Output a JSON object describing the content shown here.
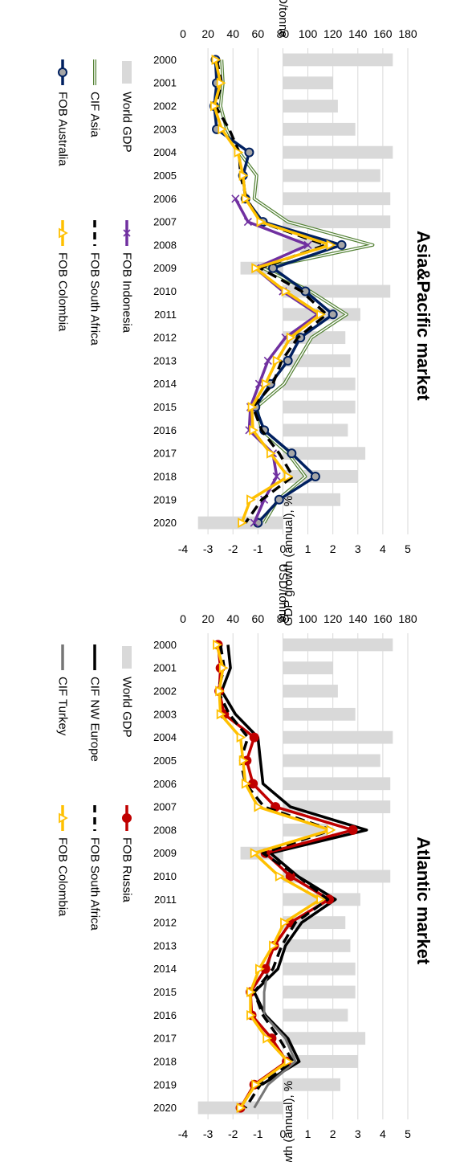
{
  "colors": {
    "gdp": "#d9d9d9",
    "cif_nw_europe": "#000000",
    "cif_turkey": "#767676",
    "fob_russia": "#c00000",
    "fob_south_africa": "#000000",
    "fob_colombia": "#ffc000",
    "fob_australia": "#002060",
    "fob_indonesia": "#7030a0",
    "cif_asia": "#548235",
    "gridline": "#d9d9d9"
  },
  "chart_data": [
    {
      "type": "line",
      "title": "Atlantic market",
      "ylabel": "USD/tonne",
      "y2label": "GDP growth (annual), %",
      "ylim": [
        0,
        180
      ],
      "y2lim": [
        -4,
        5
      ],
      "yticks": [
        "0",
        "20",
        "40",
        "60",
        "80",
        "100",
        "120",
        "140",
        "160",
        "180"
      ],
      "y2ticks": [
        "-4",
        "-3",
        "-2",
        "-1",
        "0",
        "1",
        "2",
        "3",
        "4",
        "5"
      ],
      "categories": [
        "2000",
        "2001",
        "2002",
        "2003",
        "2004",
        "2005",
        "2006",
        "2007",
        "2008",
        "2009",
        "2010",
        "2011",
        "2012",
        "2013",
        "2014",
        "2015",
        "2016",
        "2017",
        "2018",
        "2019",
        "2020"
      ],
      "legend_placement": "bottom",
      "bars": {
        "name": "World GDP",
        "values": [
          4.4,
          2.0,
          2.2,
          2.9,
          4.4,
          3.9,
          4.3,
          4.3,
          1.8,
          -1.7,
          4.3,
          3.1,
          2.5,
          2.7,
          2.9,
          2.9,
          2.6,
          3.3,
          3.0,
          2.3,
          -3.4
        ]
      },
      "series": [
        {
          "name": "CIF NW Europe",
          "style": "solid-thick",
          "values": [
            36,
            38,
            31,
            42,
            60,
            62,
            64,
            86,
            147,
            70,
            92,
            122,
            95,
            82,
            76,
            57,
            66,
            84,
            93,
            63,
            null
          ]
        },
        {
          "name": "CIF Turkey",
          "style": "solid-thick",
          "values": [
            null,
            null,
            null,
            null,
            null,
            null,
            null,
            null,
            null,
            null,
            null,
            null,
            null,
            71,
            68,
            65,
            65,
            82,
            90,
            68,
            57
          ]
        },
        {
          "name": "FOB Russia",
          "style": "marker-circle",
          "values": [
            28,
            30,
            29,
            33,
            57,
            51,
            56,
            74,
            136,
            66,
            86,
            117,
            86,
            73,
            66,
            54,
            55,
            71,
            83,
            57,
            46
          ]
        },
        {
          "name": "FOB South Africa",
          "style": "dashed",
          "values": [
            30,
            33,
            28,
            37,
            52,
            46,
            50,
            65,
            119,
            64,
            92,
            116,
            90,
            79,
            72,
            57,
            64,
            77,
            88,
            62,
            50
          ]
        },
        {
          "name": "FOB Colombia",
          "style": "marker-triangle",
          "values": [
            27,
            32,
            29,
            30,
            46,
            48,
            50,
            60,
            118,
            57,
            77,
            110,
            81,
            72,
            61,
            54,
            54,
            67,
            84,
            58,
            46
          ]
        }
      ]
    },
    {
      "type": "line",
      "title": "Asia&Pacific market",
      "ylabel": "USD/tonne",
      "y2label": "GDP growth (annual), %",
      "ylim": [
        0,
        180
      ],
      "y2lim": [
        -4,
        5
      ],
      "yticks": [
        "0",
        "20",
        "40",
        "60",
        "80",
        "100",
        "120",
        "140",
        "160",
        "180"
      ],
      "y2ticks": [
        "-4",
        "-3",
        "-2",
        "-1",
        "0",
        "1",
        "2",
        "3",
        "4",
        "5"
      ],
      "categories": [
        "2000",
        "2001",
        "2002",
        "2003",
        "2004",
        "2005",
        "2006",
        "2007",
        "2008",
        "2009",
        "2010",
        "2011",
        "2012",
        "2013",
        "2014",
        "2015",
        "2016",
        "2017",
        "2018",
        "2019",
        "2020"
      ],
      "legend_placement": "bottom",
      "bars": {
        "name": "World GDP",
        "values": [
          4.4,
          2.0,
          2.2,
          2.9,
          4.4,
          3.9,
          4.3,
          4.3,
          1.8,
          -1.7,
          4.3,
          3.1,
          2.5,
          2.7,
          2.9,
          2.9,
          2.6,
          3.3,
          3.0,
          2.3,
          -3.4
        ]
      },
      "series": [
        {
          "name": "CIF Asia",
          "style": "double-line",
          "values": [
            31,
            32,
            30,
            35,
            45,
            59,
            57,
            84,
            152,
            64,
            102,
            131,
            103,
            92,
            81,
            59,
            63,
            84,
            98,
            76,
            65
          ]
        },
        {
          "name": "FOB Australia",
          "style": "marker-circle",
          "values": [
            26,
            27,
            25,
            27,
            53,
            48,
            50,
            64,
            127,
            72,
            98,
            120,
            94,
            84,
            70,
            58,
            65,
            87,
            106,
            77,
            60
          ]
        },
        {
          "name": "FOB Indonesia",
          "style": "marker-x",
          "values": [
            null,
            null,
            null,
            null,
            null,
            null,
            42,
            52,
            100,
            58,
            80,
            108,
            82,
            68,
            61,
            54,
            53,
            72,
            75,
            65,
            57
          ]
        },
        {
          "name": "FOB South Africa",
          "style": "dashed",
          "values": [
            27,
            31,
            26,
            37,
            45,
            46,
            51,
            62,
            114,
            62,
            95,
            115,
            92,
            79,
            72,
            56,
            63,
            77,
            88,
            63,
            50
          ]
        },
        {
          "name": "FOB Colombia",
          "style": "marker-triangle",
          "values": [
            26,
            30,
            25,
            31,
            44,
            48,
            50,
            62,
            118,
            58,
            82,
            110,
            86,
            75,
            66,
            55,
            56,
            70,
            84,
            54,
            47
          ]
        }
      ]
    }
  ]
}
